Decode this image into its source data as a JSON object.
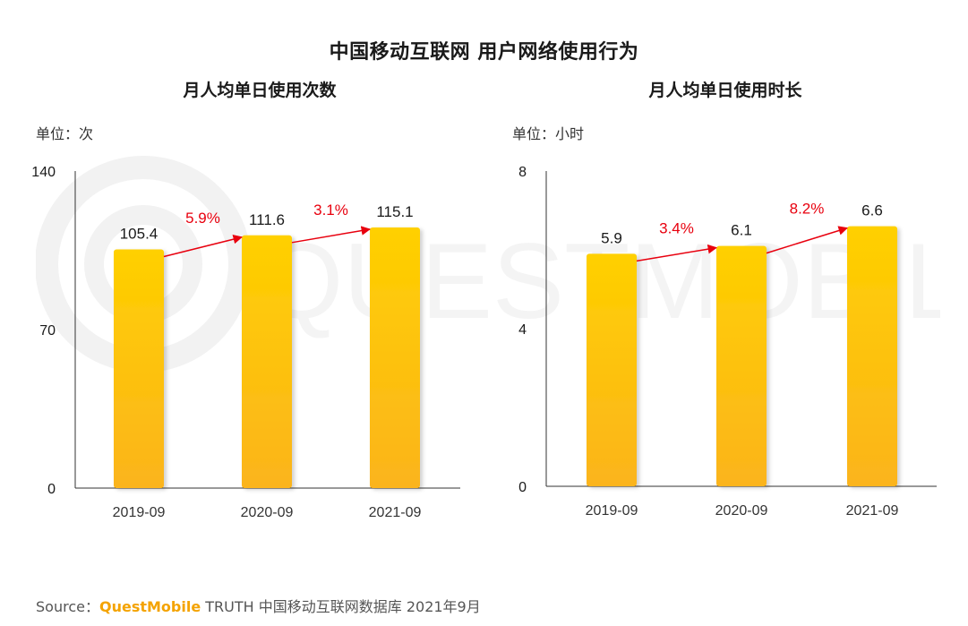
{
  "page": {
    "title": "中国移动互联网 用户网络使用行为"
  },
  "source": {
    "prefix": "Source：",
    "brand": "QuestMobile",
    "rest": " TRUTH 中国移动互联网数据库 2021年9月"
  },
  "watermark": {
    "text": "QUESTMOBILE"
  },
  "colors": {
    "bar_top": "#FFD000",
    "bar_bottom": "#FBB41C",
    "growth": "#E8000E",
    "axis": "#333333"
  },
  "chart_data": [
    {
      "type": "bar",
      "title": "月人均单日使用次数",
      "unit": "单位：次",
      "categories": [
        "2019-09",
        "2020-09",
        "2021-09"
      ],
      "values": [
        105.4,
        111.6,
        115.1
      ],
      "value_labels": [
        "105.4",
        "111.6",
        "115.1"
      ],
      "ylim": [
        0,
        140
      ],
      "yticks": [
        "0",
        "70",
        "140"
      ],
      "ytick_values": [
        0,
        70,
        140
      ],
      "growth": [
        "5.9%",
        "3.1%"
      ],
      "grid": false,
      "legend": "none"
    },
    {
      "type": "bar",
      "title": "月人均单日使用时长",
      "unit": "单位：小时",
      "categories": [
        "2019-09",
        "2020-09",
        "2021-09"
      ],
      "values": [
        5.9,
        6.1,
        6.6
      ],
      "value_labels": [
        "5.9",
        "6.1",
        "6.6"
      ],
      "ylim": [
        0,
        8
      ],
      "yticks": [
        "0",
        "4",
        "8"
      ],
      "ytick_values": [
        0,
        4,
        8
      ],
      "growth": [
        "3.4%",
        "8.2%"
      ],
      "grid": false,
      "legend": "none"
    }
  ]
}
